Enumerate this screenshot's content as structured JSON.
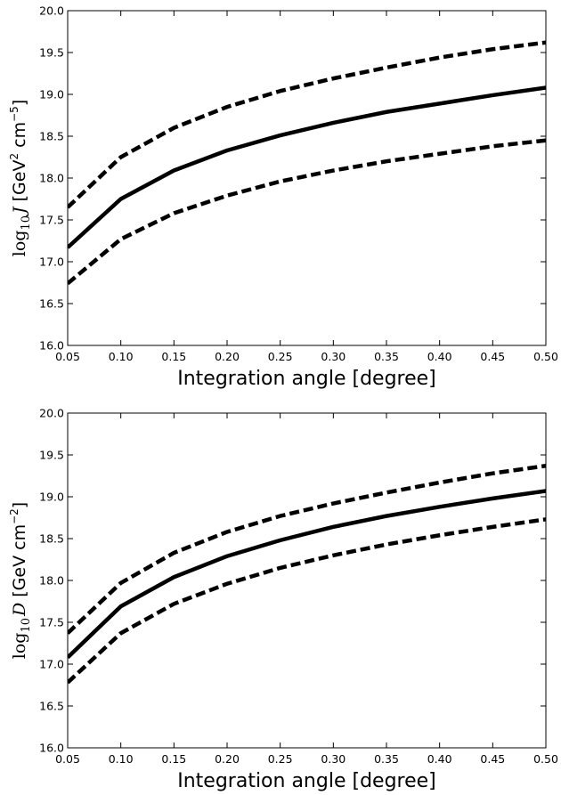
{
  "chart_data": [
    {
      "type": "line",
      "title": "",
      "xlabel": "Integration angle [degree]",
      "ylabel": {
        "log": "log",
        "log_sub": "10",
        "symbol": "J",
        "unit_open": " [GeV",
        "unit_sup1": "2",
        "unit_mid": " cm",
        "unit_sup2": "−5",
        "unit_close": "]"
      },
      "xlim": [
        0.05,
        0.5
      ],
      "ylim": [
        16.0,
        20.0
      ],
      "xticks": [
        "0.05",
        "0.10",
        "0.15",
        "0.20",
        "0.25",
        "0.30",
        "0.35",
        "0.40",
        "0.45",
        "0.50"
      ],
      "yticks": [
        "16.0",
        "16.5",
        "17.0",
        "17.5",
        "18.0",
        "18.5",
        "19.0",
        "19.5",
        "20.0"
      ],
      "grid": false,
      "x": [
        0.05,
        0.1,
        0.15,
        0.2,
        0.25,
        0.3,
        0.35,
        0.4,
        0.45,
        0.5
      ],
      "series": [
        {
          "style": "solid",
          "values": [
            17.17,
            17.75,
            18.09,
            18.33,
            18.51,
            18.66,
            18.79,
            18.89,
            18.99,
            19.08
          ]
        },
        {
          "style": "dashed",
          "values": [
            17.65,
            18.25,
            18.6,
            18.85,
            19.04,
            19.19,
            19.32,
            19.44,
            19.54,
            19.62
          ]
        },
        {
          "style": "dashed",
          "values": [
            16.74,
            17.27,
            17.58,
            17.79,
            17.96,
            18.09,
            18.2,
            18.29,
            18.38,
            18.45
          ]
        }
      ]
    },
    {
      "type": "line",
      "title": "",
      "xlabel": "Integration angle [degree]",
      "ylabel": {
        "log": "log",
        "log_sub": "10",
        "symbol": "D",
        "unit_open": " [GeV",
        "unit_sup1": "",
        "unit_mid": " cm",
        "unit_sup2": "−2",
        "unit_close": "]"
      },
      "xlim": [
        0.05,
        0.5
      ],
      "ylim": [
        16.0,
        20.0
      ],
      "xticks": [
        "0.05",
        "0.10",
        "0.15",
        "0.20",
        "0.25",
        "0.30",
        "0.35",
        "0.40",
        "0.45",
        "0.50"
      ],
      "yticks": [
        "16.0",
        "16.5",
        "17.0",
        "17.5",
        "18.0",
        "18.5",
        "19.0",
        "19.5",
        "20.0"
      ],
      "grid": false,
      "x": [
        0.05,
        0.1,
        0.15,
        0.2,
        0.25,
        0.3,
        0.35,
        0.4,
        0.45,
        0.5
      ],
      "series": [
        {
          "style": "solid",
          "values": [
            17.08,
            17.69,
            18.04,
            18.29,
            18.48,
            18.64,
            18.77,
            18.88,
            18.98,
            19.07
          ]
        },
        {
          "style": "dashed",
          "values": [
            17.37,
            17.97,
            18.33,
            18.58,
            18.77,
            18.92,
            19.05,
            19.17,
            19.28,
            19.37
          ]
        },
        {
          "style": "dashed",
          "values": [
            16.78,
            17.37,
            17.72,
            17.96,
            18.15,
            18.3,
            18.43,
            18.54,
            18.64,
            18.73
          ]
        }
      ]
    }
  ]
}
